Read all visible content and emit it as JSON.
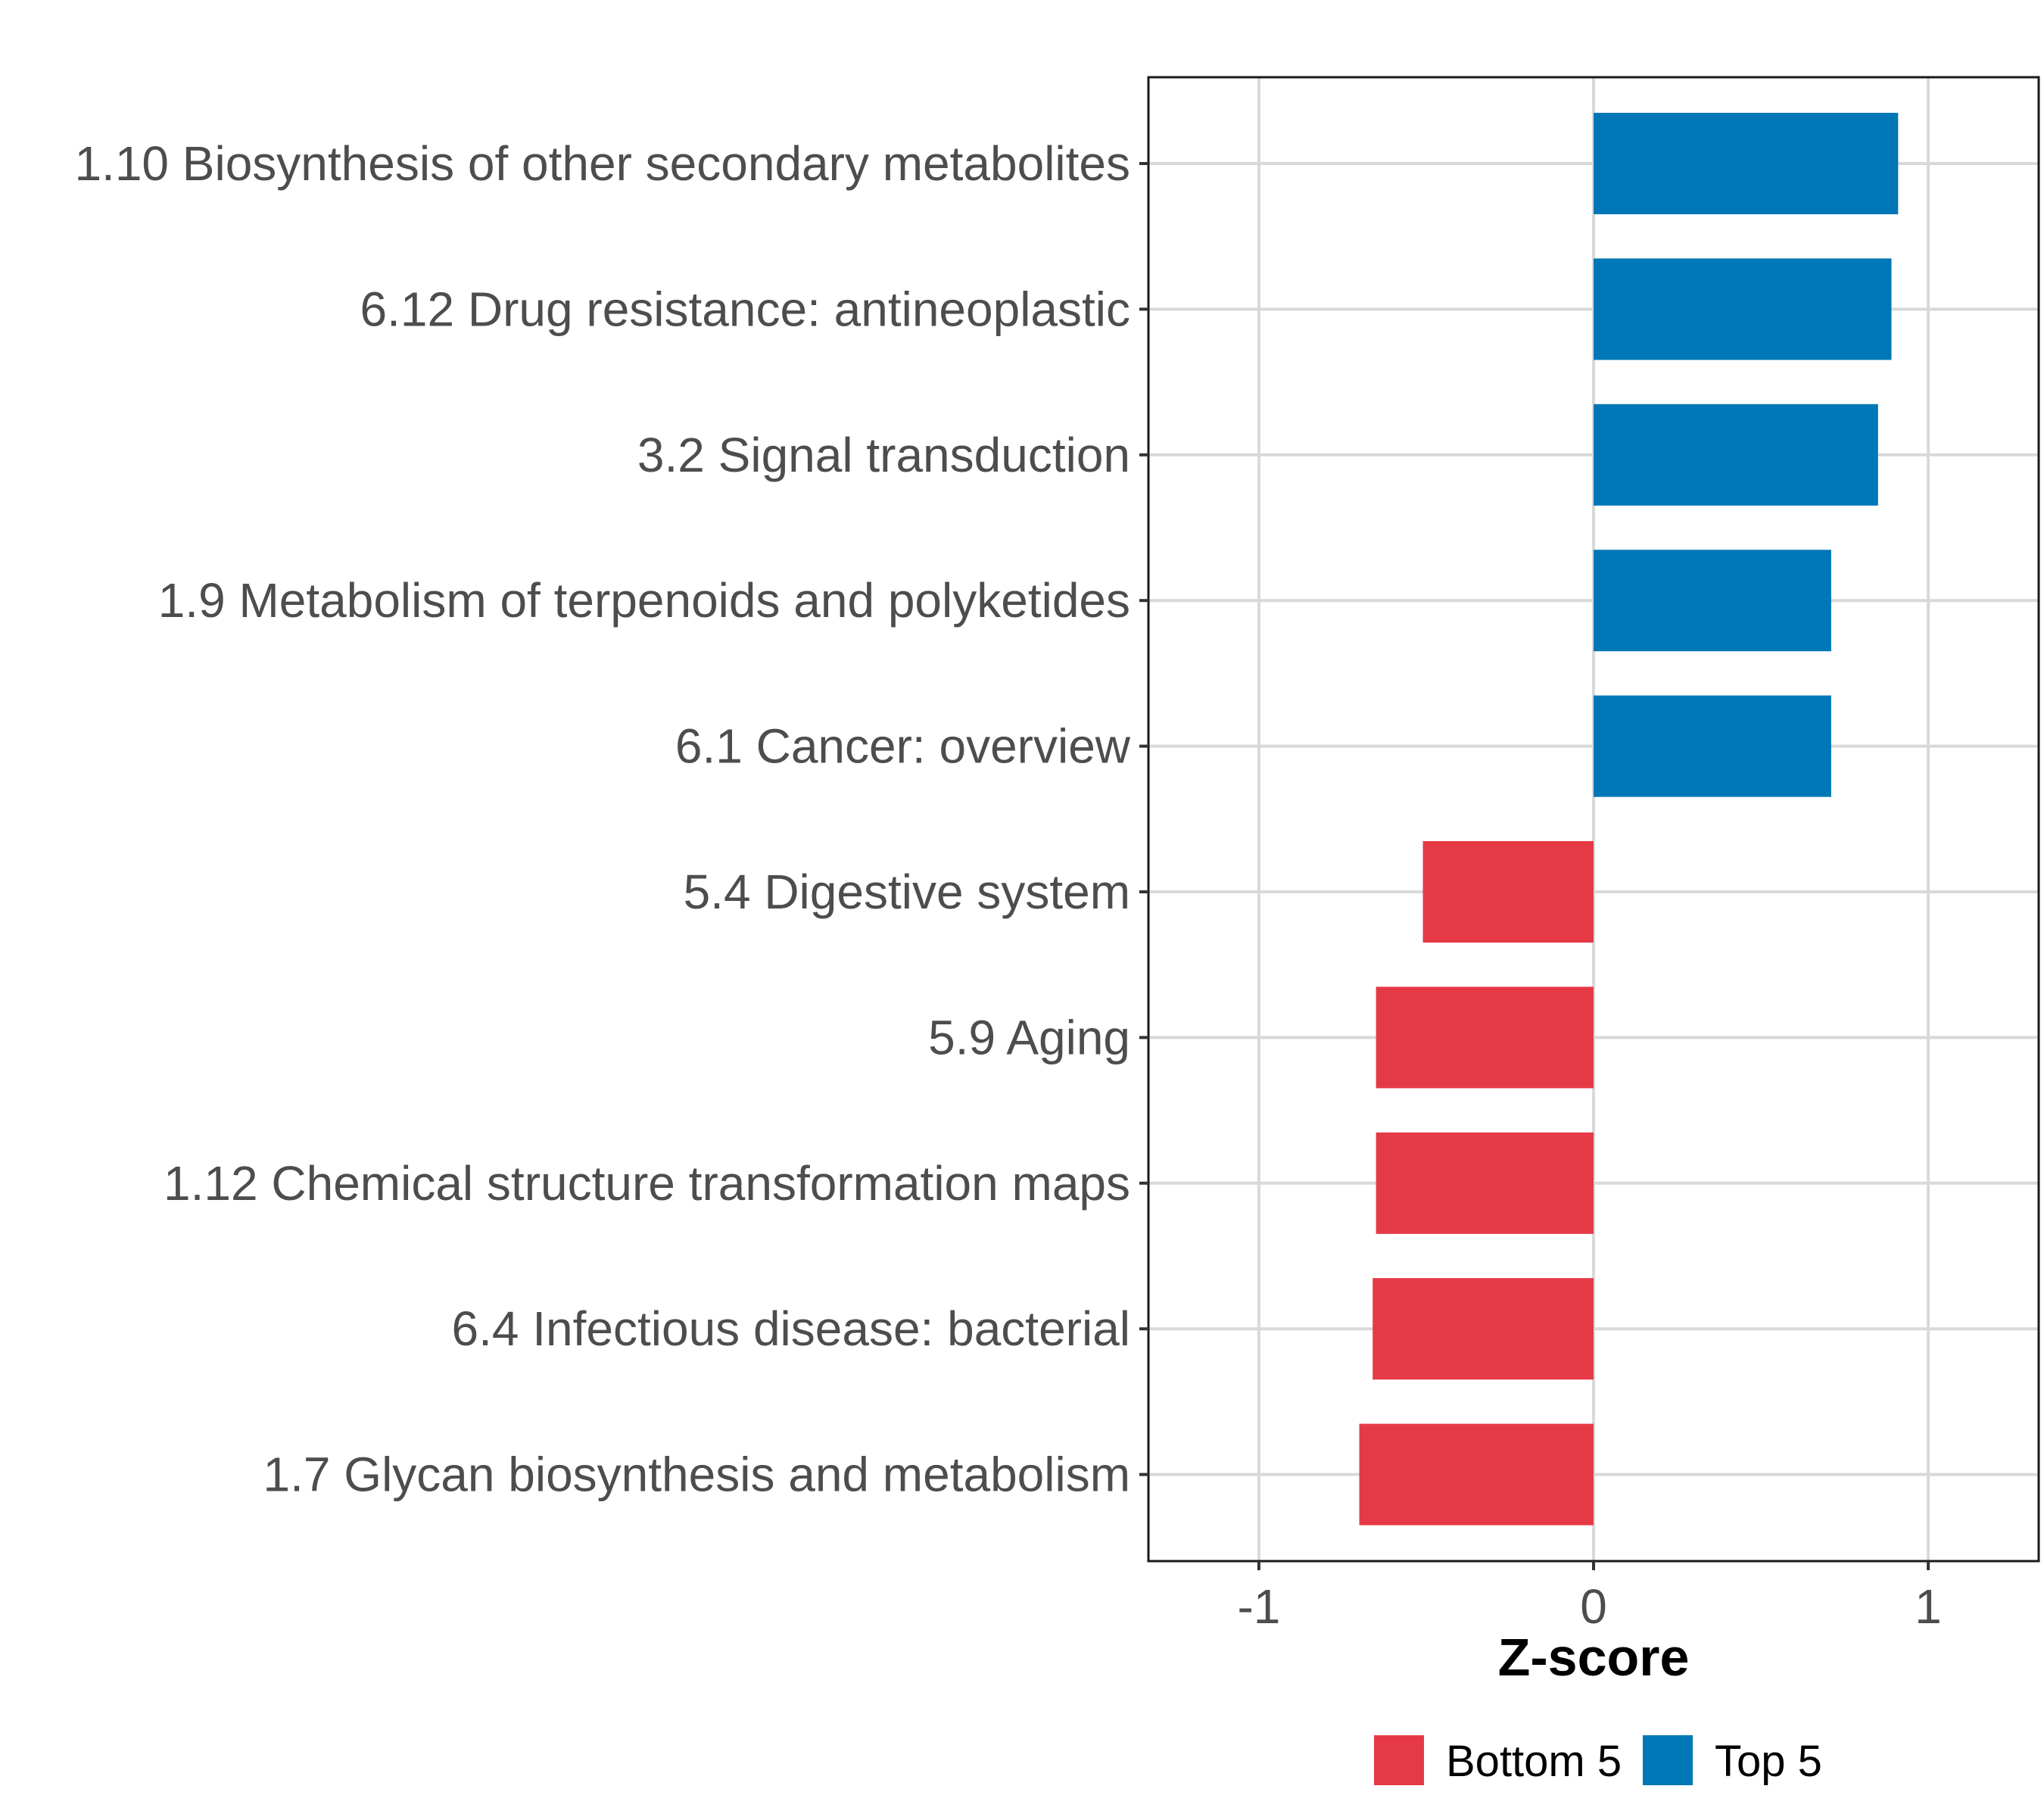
{
  "chart_data": {
    "type": "bar",
    "orientation": "horizontal",
    "title": "",
    "xlabel": "Z-score",
    "ylabel": "",
    "xlim": [
      -1.33,
      1.33
    ],
    "xticks": [
      -1,
      0,
      1
    ],
    "xtick_labels": [
      "-1",
      "0",
      "1"
    ],
    "grid": true,
    "legend_position": "bottom",
    "categories": [
      "1.10 Biosynthesis of other secondary metabolites",
      "6.12 Drug resistance: antineoplastic",
      "3.2 Signal transduction",
      "1.9 Metabolism of terpenoids and polyketides",
      "6.1 Cancer: overview",
      "5.4 Digestive system",
      "5.9 Aging",
      "1.12 Chemical structure transformation maps",
      "6.4 Infectious disease: bacterial",
      "1.7 Glycan biosynthesis and metabolism"
    ],
    "values": [
      0.91,
      0.89,
      0.85,
      0.71,
      0.71,
      -0.51,
      -0.65,
      -0.65,
      -0.66,
      -0.7
    ],
    "groups": [
      "Top 5",
      "Top 5",
      "Top 5",
      "Top 5",
      "Top 5",
      "Bottom 5",
      "Bottom 5",
      "Bottom 5",
      "Bottom 5",
      "Bottom 5"
    ],
    "legend": [
      {
        "name": "Bottom 5",
        "color": "#e63946"
      },
      {
        "name": "Top 5",
        "color": "#0077b6"
      }
    ]
  }
}
